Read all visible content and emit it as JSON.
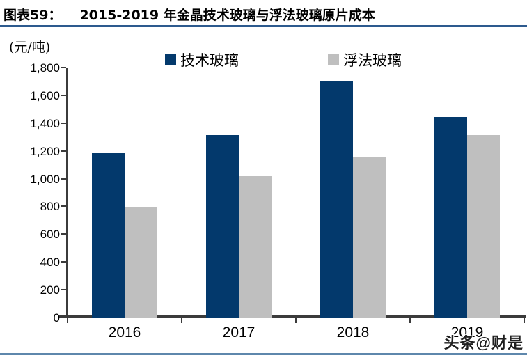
{
  "header": {
    "figure_label": "图表59：",
    "title": "2015-2019 年金晶技术玻璃与浮法玻璃原片成本"
  },
  "chart_data": {
    "type": "bar",
    "title": "2015-2019 年金晶技术玻璃与浮法玻璃原片成本",
    "unit_label": "(元/吨)",
    "categories": [
      "2016",
      "2017",
      "2018",
      "2019"
    ],
    "series": [
      {
        "name": "技术玻璃",
        "color": "#03396c",
        "values": [
          1185,
          1315,
          1705,
          1445
        ]
      },
      {
        "name": "浮法玻璃",
        "color": "#bfbfbf",
        "values": [
          795,
          1020,
          1160,
          1315
        ]
      }
    ],
    "ylim": [
      0,
      1800
    ],
    "ytick_step": 200,
    "ytick_labels": [
      "1,800",
      "1,600",
      "1,400",
      "1,200",
      "1,000",
      "800",
      "600",
      "400",
      "200",
      "0"
    ],
    "legend_position": "top",
    "grid": false
  },
  "watermark": {
    "text": "头条@财是"
  },
  "colors": {
    "title_rule": "#2d5a8e",
    "bottom_rule": "#5e87ac",
    "axis": "#3b3b3b"
  }
}
